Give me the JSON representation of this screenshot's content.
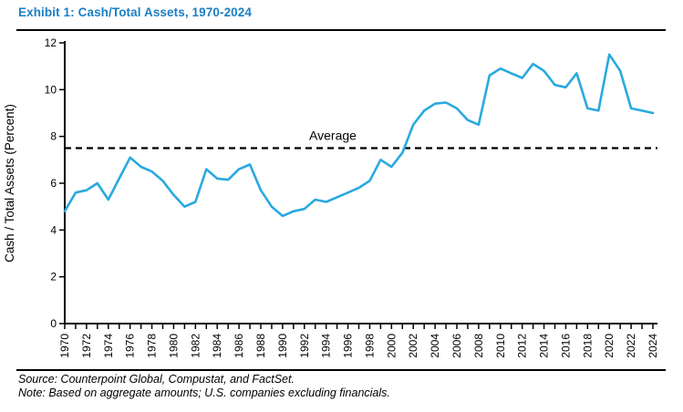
{
  "header": {
    "title": "Exhibit 1: Cash/Total Assets, 1970-2024"
  },
  "colors": {
    "title": "#1B7FC4",
    "series_line": "#29A9DF",
    "axis": "#000000",
    "average_line": "#000000",
    "background": "#FFFFFF"
  },
  "chart_data": {
    "type": "line",
    "title": "Exhibit 1: Cash/Total Assets, 1970-2024",
    "xlabel": "",
    "ylabel": "Cash / Total Assets (Percent)",
    "ylim": [
      0,
      12
    ],
    "yticks": [
      0,
      2,
      4,
      6,
      8,
      10,
      12
    ],
    "grid": false,
    "legend": "none",
    "x": [
      1970,
      1971,
      1972,
      1973,
      1974,
      1975,
      1976,
      1977,
      1978,
      1979,
      1980,
      1981,
      1982,
      1983,
      1984,
      1985,
      1986,
      1987,
      1988,
      1989,
      1990,
      1991,
      1992,
      1993,
      1994,
      1995,
      1996,
      1997,
      1998,
      1999,
      2000,
      2001,
      2002,
      2003,
      2004,
      2005,
      2006,
      2007,
      2008,
      2009,
      2010,
      2011,
      2012,
      2013,
      2014,
      2015,
      2016,
      2017,
      2018,
      2019,
      2020,
      2021,
      2022,
      2023,
      2024
    ],
    "xtick_labels": [
      "1970",
      "1972",
      "1974",
      "1976",
      "1978",
      "1980",
      "1982",
      "1984",
      "1986",
      "1988",
      "1990",
      "1992",
      "1994",
      "1996",
      "1998",
      "2000",
      "2002",
      "2004",
      "2006",
      "2008",
      "2010",
      "2012",
      "2014",
      "2016",
      "2018",
      "2020",
      "2022",
      "2024"
    ],
    "series": [
      {
        "name": "Cash/Total Assets (Percent)",
        "values": [
          4.8,
          5.6,
          5.7,
          6.0,
          5.3,
          6.2,
          7.1,
          6.7,
          6.5,
          6.1,
          5.5,
          5.0,
          5.2,
          6.6,
          6.2,
          6.15,
          6.6,
          6.8,
          5.7,
          5.0,
          4.6,
          4.8,
          4.9,
          5.3,
          5.2,
          5.4,
          5.6,
          5.8,
          6.1,
          7.0,
          6.7,
          7.3,
          8.5,
          9.1,
          9.4,
          9.45,
          9.2,
          8.7,
          8.5,
          10.6,
          10.9,
          10.7,
          10.5,
          11.1,
          10.8,
          10.2,
          10.1,
          10.7,
          9.2,
          9.1,
          11.5,
          10.8,
          9.2,
          9.1,
          9.0
        ]
      }
    ],
    "annotations": [
      {
        "label": "Average",
        "value": 7.5,
        "style": "dashed-horizontal-line"
      }
    ]
  },
  "footer": {
    "source": "Source: Counterpoint Global, Compustat, and FactSet.",
    "note": "Note: Based on aggregate amounts; U.S. companies excluding financials."
  }
}
